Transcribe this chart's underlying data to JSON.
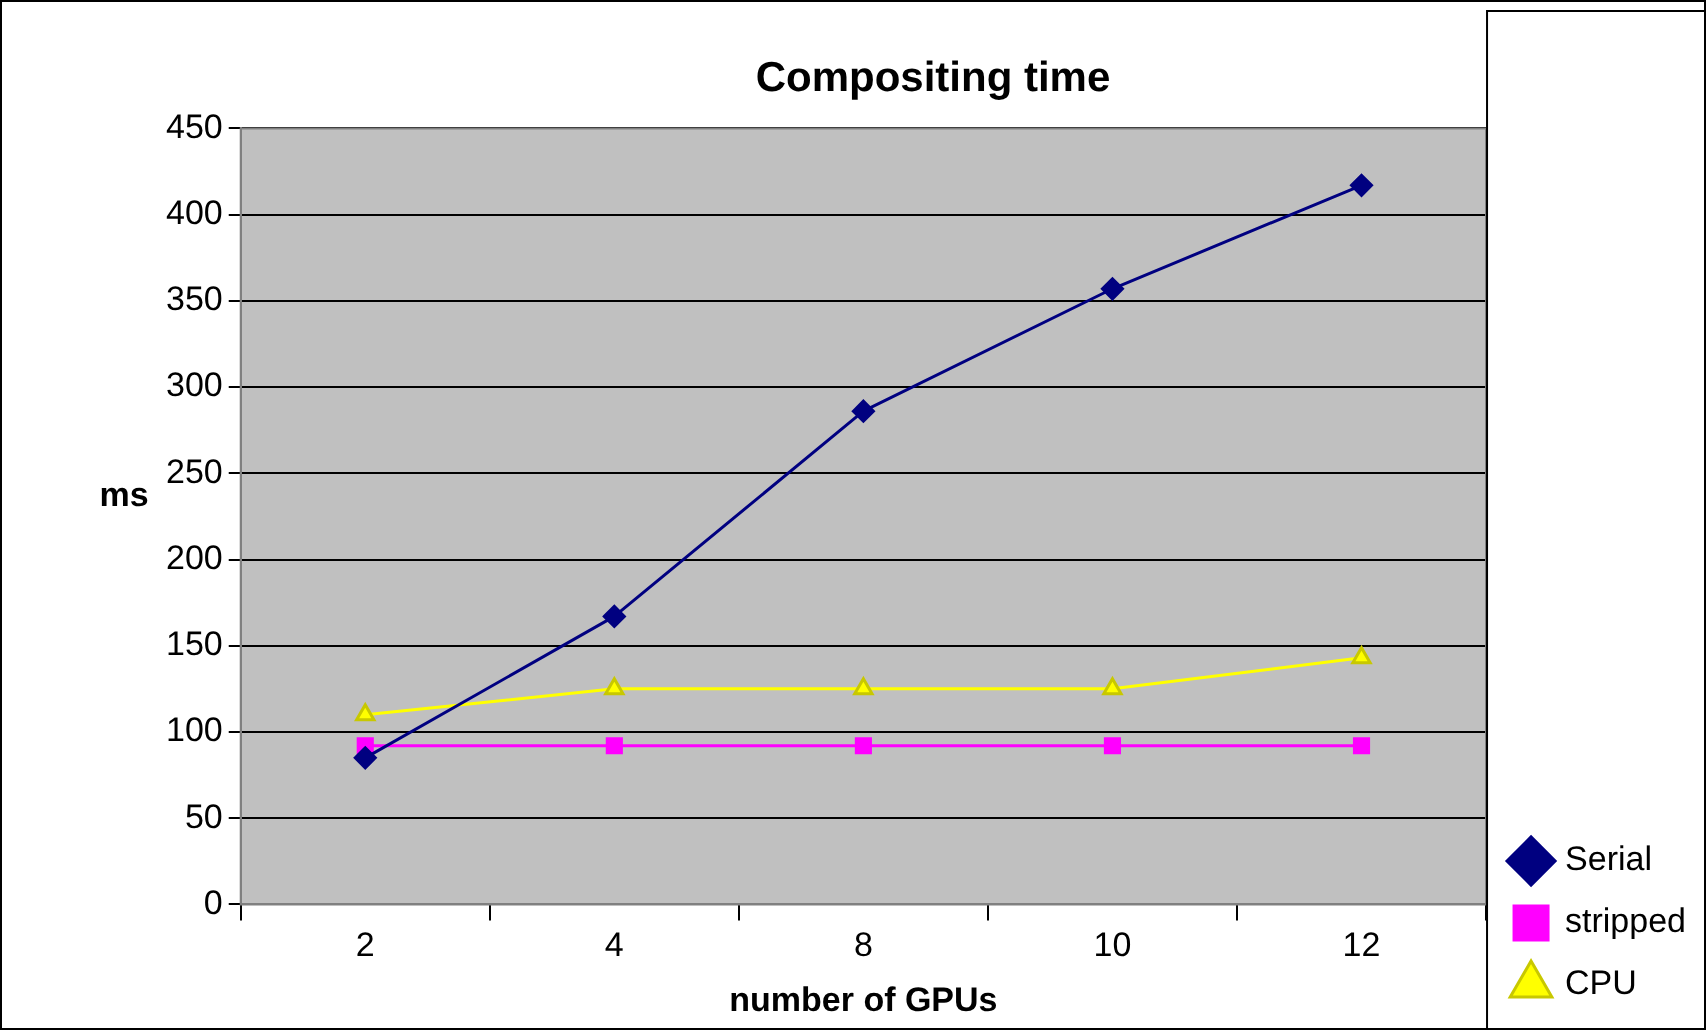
{
  "chart_data": {
    "type": "line",
    "title": "Compositing time",
    "xlabel": "number of GPUs",
    "ylabel": "ms",
    "categories": [
      "2",
      "4",
      "8",
      "10",
      "12"
    ],
    "series": [
      {
        "name": "Serial",
        "color": "#000080",
        "marker": "diamond",
        "values": [
          85,
          167,
          286,
          357,
          417
        ]
      },
      {
        "name": "stripped",
        "color": "#ff00ff",
        "marker": "square",
        "values": [
          92,
          92,
          92,
          92,
          92
        ]
      },
      {
        "name": "CPU",
        "color": "#ffff00",
        "marker": "triangle",
        "values": [
          110,
          125,
          125,
          125,
          143
        ]
      }
    ],
    "ylim": [
      0,
      450
    ],
    "yticks": [
      0,
      50,
      100,
      150,
      200,
      250,
      300,
      350,
      400,
      450
    ],
    "grid": "y",
    "legend": "bottom right"
  }
}
